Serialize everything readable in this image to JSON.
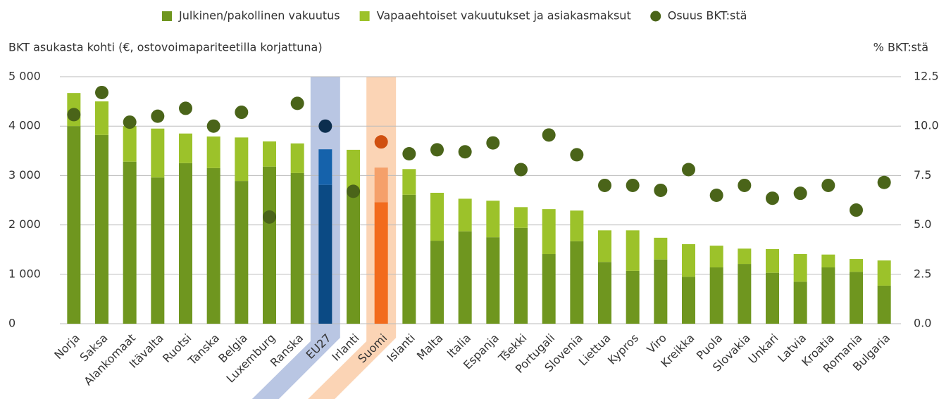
{
  "chart_data": {
    "type": "bar",
    "stacked": true,
    "y_label": "BKT asukasta kohti (€, ostovoimapariteetilla korjattuna)",
    "y2_label": "% BKT:stä",
    "categories": [
      "Norja",
      "Saksa",
      "Alankomaat",
      "Itävalta",
      "Ruotsi",
      "Tanska",
      "Belgia",
      "Luxemburg",
      "Ranska",
      "EU27",
      "Irlanti",
      "Suomi",
      "Islanti",
      "Malta",
      "Italia",
      "Espanja",
      "Tšekki",
      "Portugali",
      "Slovenia",
      "Liettua",
      "Kypros",
      "Viro",
      "Kreikka",
      "Puola",
      "Slovakia",
      "Unkari",
      "Latvia",
      "Kroatia",
      "Romania",
      "Bulgaria"
    ],
    "series": [
      {
        "name": "Julkinen/pakollinen vakuutus",
        "color": "#6f961f",
        "type": "bar",
        "values": [
          4000,
          3820,
          3280,
          2960,
          3250,
          3150,
          2890,
          3180,
          3050,
          2810,
          2700,
          2460,
          2610,
          1680,
          1870,
          1750,
          1940,
          1410,
          1670,
          1250,
          1070,
          1300,
          950,
          1140,
          1210,
          1030,
          850,
          1140,
          1050,
          770
        ]
      },
      {
        "name": "Vapaaehtoiset vakuutukset ja asiakasmaksut",
        "color": "#9cc22a",
        "type": "bar",
        "values": [
          670,
          680,
          720,
          990,
          600,
          640,
          880,
          510,
          600,
          720,
          820,
          700,
          520,
          970,
          660,
          740,
          420,
          910,
          620,
          640,
          820,
          440,
          660,
          440,
          310,
          480,
          560,
          260,
          260,
          510
        ]
      },
      {
        "name": "Osuus BKT:stä",
        "color": "#4a6419",
        "type": "scatter",
        "axis": "y2",
        "values": [
          10.58,
          11.7,
          10.2,
          10.5,
          10.9,
          10.0,
          10.7,
          5.4,
          11.15,
          10.0,
          6.7,
          9.2,
          8.6,
          8.8,
          8.7,
          9.15,
          7.8,
          9.55,
          8.55,
          7.0,
          7.0,
          6.75,
          7.8,
          6.5,
          7.0,
          6.35,
          6.6,
          7.0,
          5.75,
          7.15
        ]
      }
    ],
    "highlights": [
      {
        "index": 9,
        "band": "#b9c6e3",
        "colors": [
          "#0b4a84",
          "#1562ab",
          "#0c2e4e"
        ]
      },
      {
        "index": 11,
        "band": "#fbd4b5",
        "colors": [
          "#f26b1d",
          "#f5a06a",
          "#d05010"
        ]
      }
    ],
    "ylim": [
      0,
      5000
    ],
    "yticks": [
      {
        "value": 0,
        "label": "0"
      },
      {
        "value": 1000,
        "label": "1 000"
      },
      {
        "value": 2000,
        "label": "2 000"
      },
      {
        "value": 3000,
        "label": "3 000"
      },
      {
        "value": 4000,
        "label": "4 000"
      },
      {
        "value": 5000,
        "label": "5 000"
      }
    ],
    "y2lim": [
      0,
      12.5
    ],
    "y2ticks": [
      {
        "value": 0,
        "label": "0.0"
      },
      2.5,
      {
        "value": 5,
        "label": "5.0"
      },
      7.5,
      {
        "value": 10,
        "label": "10.0"
      },
      12.5
    ],
    "grid": true
  }
}
